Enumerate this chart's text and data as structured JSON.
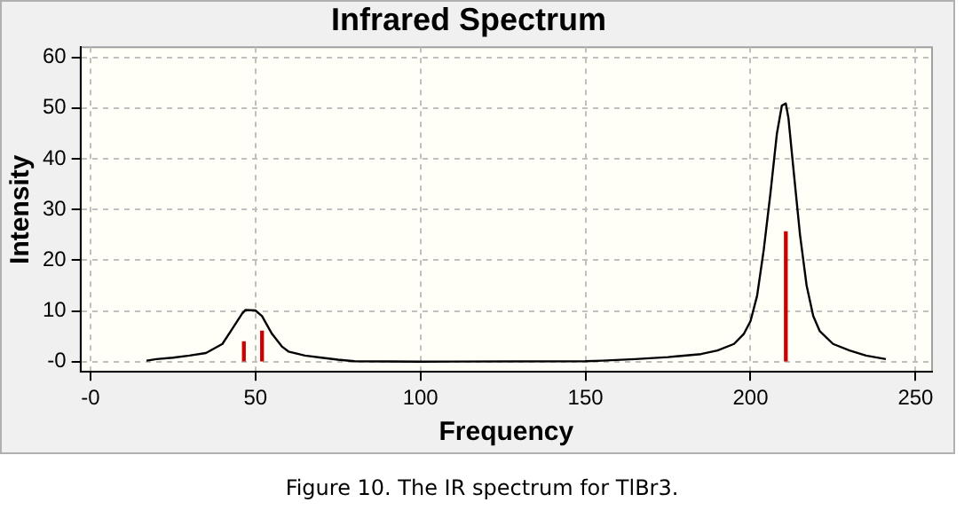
{
  "chart_data": {
    "type": "line",
    "title": "Infrared Spectrum",
    "xlabel": "Frequency",
    "ylabel": "Intensity",
    "annotations": [
      "Figure 10. The IR spectrum for TlBr3."
    ],
    "xlim": [
      -3,
      255
    ],
    "ylim": [
      -2,
      62
    ],
    "xticks": [
      {
        "value": 0,
        "label": "-0"
      },
      50,
      100,
      150,
      200,
      250
    ],
    "yticks": [
      {
        "value": 0,
        "label": "-0"
      },
      10,
      20,
      30,
      40,
      50,
      60
    ],
    "grid": true,
    "legend": false,
    "line_style": "solid",
    "marker": "none",
    "series": [
      {
        "color": "#000000",
        "x": [
          17,
          20,
          25,
          30,
          35,
          40,
          43,
          46,
          47,
          50,
          52,
          55,
          58,
          60,
          65,
          70,
          75,
          80,
          100,
          150,
          155,
          165,
          175,
          185,
          190,
          195,
          198,
          200,
          202,
          204,
          206,
          208,
          209.5,
          210.7,
          211.5,
          213,
          215,
          217,
          219,
          221,
          225,
          230,
          235,
          241
        ],
        "values": [
          0.2,
          0.5,
          0.8,
          1.2,
          1.7,
          3.5,
          6.5,
          9.5,
          10.2,
          10.1,
          9,
          5.5,
          3,
          2,
          1.2,
          0.8,
          0.4,
          0.1,
          0,
          0.1,
          0.2,
          0.5,
          0.9,
          1.5,
          2.2,
          3.5,
          5.5,
          8,
          13,
          22,
          33,
          45,
          50.5,
          50.9,
          48,
          38,
          25,
          15,
          9,
          6,
          3.5,
          2.2,
          1.2,
          0.5
        ]
      },
      {
        "type": "bar",
        "color": "#cc0000",
        "x": [
          46.5,
          52,
          210.7
        ],
        "values": [
          3.9,
          6,
          25.6
        ]
      }
    ]
  }
}
